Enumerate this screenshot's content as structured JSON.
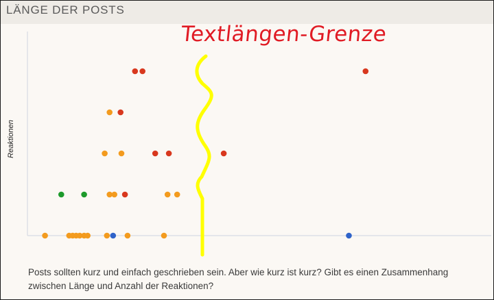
{
  "header": {
    "title": "LÄNGE DER POSTS"
  },
  "annotation": {
    "text": "Textlängen-Grenze",
    "text_color": "#e01b24",
    "line_color": "#ffff00"
  },
  "caption": {
    "text": "Posts sollten kurz und einfach geschrieben sein. Aber wie kurz ist kurz? Gibt es einen Zusammenhang zwischen Länge und Anzahl der Reaktionen?"
  },
  "colors": {
    "orange": "#f39b1e",
    "red": "#d8381e",
    "green": "#1d9a2b",
    "blue": "#2f63c9"
  },
  "chart_data": {
    "type": "scatter",
    "title": "LÄNGE DER POSTS",
    "xlabel": "",
    "ylabel": "Reaktionen",
    "xlim": [
      0,
      100
    ],
    "ylim": [
      0,
      5
    ],
    "grid": false,
    "legend": "none",
    "points": [
      {
        "x": 4.0,
        "y": 0,
        "color": "orange"
      },
      {
        "x": 9.5,
        "y": 0,
        "color": "orange"
      },
      {
        "x": 10.3,
        "y": 0,
        "color": "orange"
      },
      {
        "x": 11.1,
        "y": 0,
        "color": "orange"
      },
      {
        "x": 11.9,
        "y": 0,
        "color": "orange"
      },
      {
        "x": 12.9,
        "y": 0,
        "color": "orange"
      },
      {
        "x": 13.7,
        "y": 0,
        "color": "orange"
      },
      {
        "x": 18.1,
        "y": 0,
        "color": "orange"
      },
      {
        "x": 19.5,
        "y": 0,
        "color": "blue"
      },
      {
        "x": 22.8,
        "y": 0,
        "color": "orange"
      },
      {
        "x": 31.1,
        "y": 0,
        "color": "orange"
      },
      {
        "x": 73.2,
        "y": 0,
        "color": "blue"
      },
      {
        "x": 7.7,
        "y": 1,
        "color": "green"
      },
      {
        "x": 12.9,
        "y": 1,
        "color": "green"
      },
      {
        "x": 18.7,
        "y": 1,
        "color": "orange"
      },
      {
        "x": 19.8,
        "y": 1,
        "color": "orange"
      },
      {
        "x": 22.2,
        "y": 1,
        "color": "red"
      },
      {
        "x": 31.9,
        "y": 1,
        "color": "orange"
      },
      {
        "x": 34.1,
        "y": 1,
        "color": "orange"
      },
      {
        "x": 17.6,
        "y": 2,
        "color": "orange"
      },
      {
        "x": 21.4,
        "y": 2,
        "color": "orange"
      },
      {
        "x": 29.1,
        "y": 2,
        "color": "red"
      },
      {
        "x": 32.2,
        "y": 2,
        "color": "red"
      },
      {
        "x": 44.7,
        "y": 2,
        "color": "red"
      },
      {
        "x": 18.7,
        "y": 3,
        "color": "orange"
      },
      {
        "x": 21.2,
        "y": 3,
        "color": "red"
      },
      {
        "x": 24.5,
        "y": 4,
        "color": "red"
      },
      {
        "x": 26.2,
        "y": 4,
        "color": "red"
      },
      {
        "x": 77.0,
        "y": 4,
        "color": "red"
      }
    ]
  }
}
